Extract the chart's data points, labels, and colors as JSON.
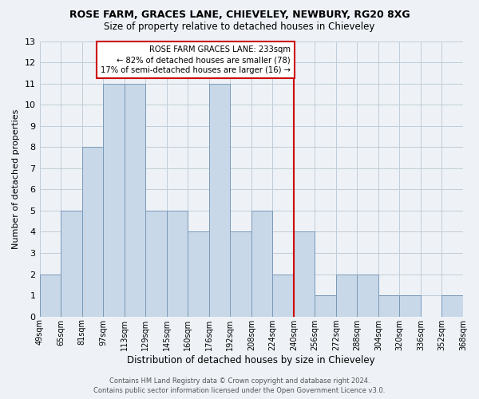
{
  "title": "ROSE FARM, GRACES LANE, CHIEVELEY, NEWBURY, RG20 8XG",
  "subtitle": "Size of property relative to detached houses in Chieveley",
  "xlabel": "Distribution of detached houses by size in Chieveley",
  "ylabel": "Number of detached properties",
  "bar_values": [
    2,
    5,
    8,
    11,
    11,
    5,
    5,
    4,
    11,
    4,
    5,
    2,
    4,
    1,
    2,
    2,
    1,
    1,
    0,
    1
  ],
  "bar_labels": [
    "49sqm",
    "65sqm",
    "81sqm",
    "97sqm",
    "113sqm",
    "129sqm",
    "145sqm",
    "160sqm",
    "176sqm",
    "192sqm",
    "208sqm",
    "224sqm",
    "240sqm",
    "256sqm",
    "272sqm",
    "288sqm",
    "304sqm",
    "320sqm",
    "336sqm",
    "352sqm",
    "368sqm"
  ],
  "bar_color": "#c8d8e8",
  "bar_edge_color": "#7a9ab8",
  "vline_color": "#cc0000",
  "annotation_title": "ROSE FARM GRACES LANE: 233sqm",
  "annotation_line1": "← 82% of detached houses are smaller (78)",
  "annotation_line2": "17% of semi-detached houses are larger (16) →",
  "annotation_box_color": "#cc0000",
  "ylim": [
    0,
    13
  ],
  "yticks": [
    0,
    1,
    2,
    3,
    4,
    5,
    6,
    7,
    8,
    9,
    10,
    11,
    12,
    13
  ],
  "footer1": "Contains HM Land Registry data © Crown copyright and database right 2024.",
  "footer2": "Contains public sector information licensed under the Open Government Licence v3.0.",
  "bg_color": "#eef2f7",
  "grid_color": "#c0ccd8"
}
